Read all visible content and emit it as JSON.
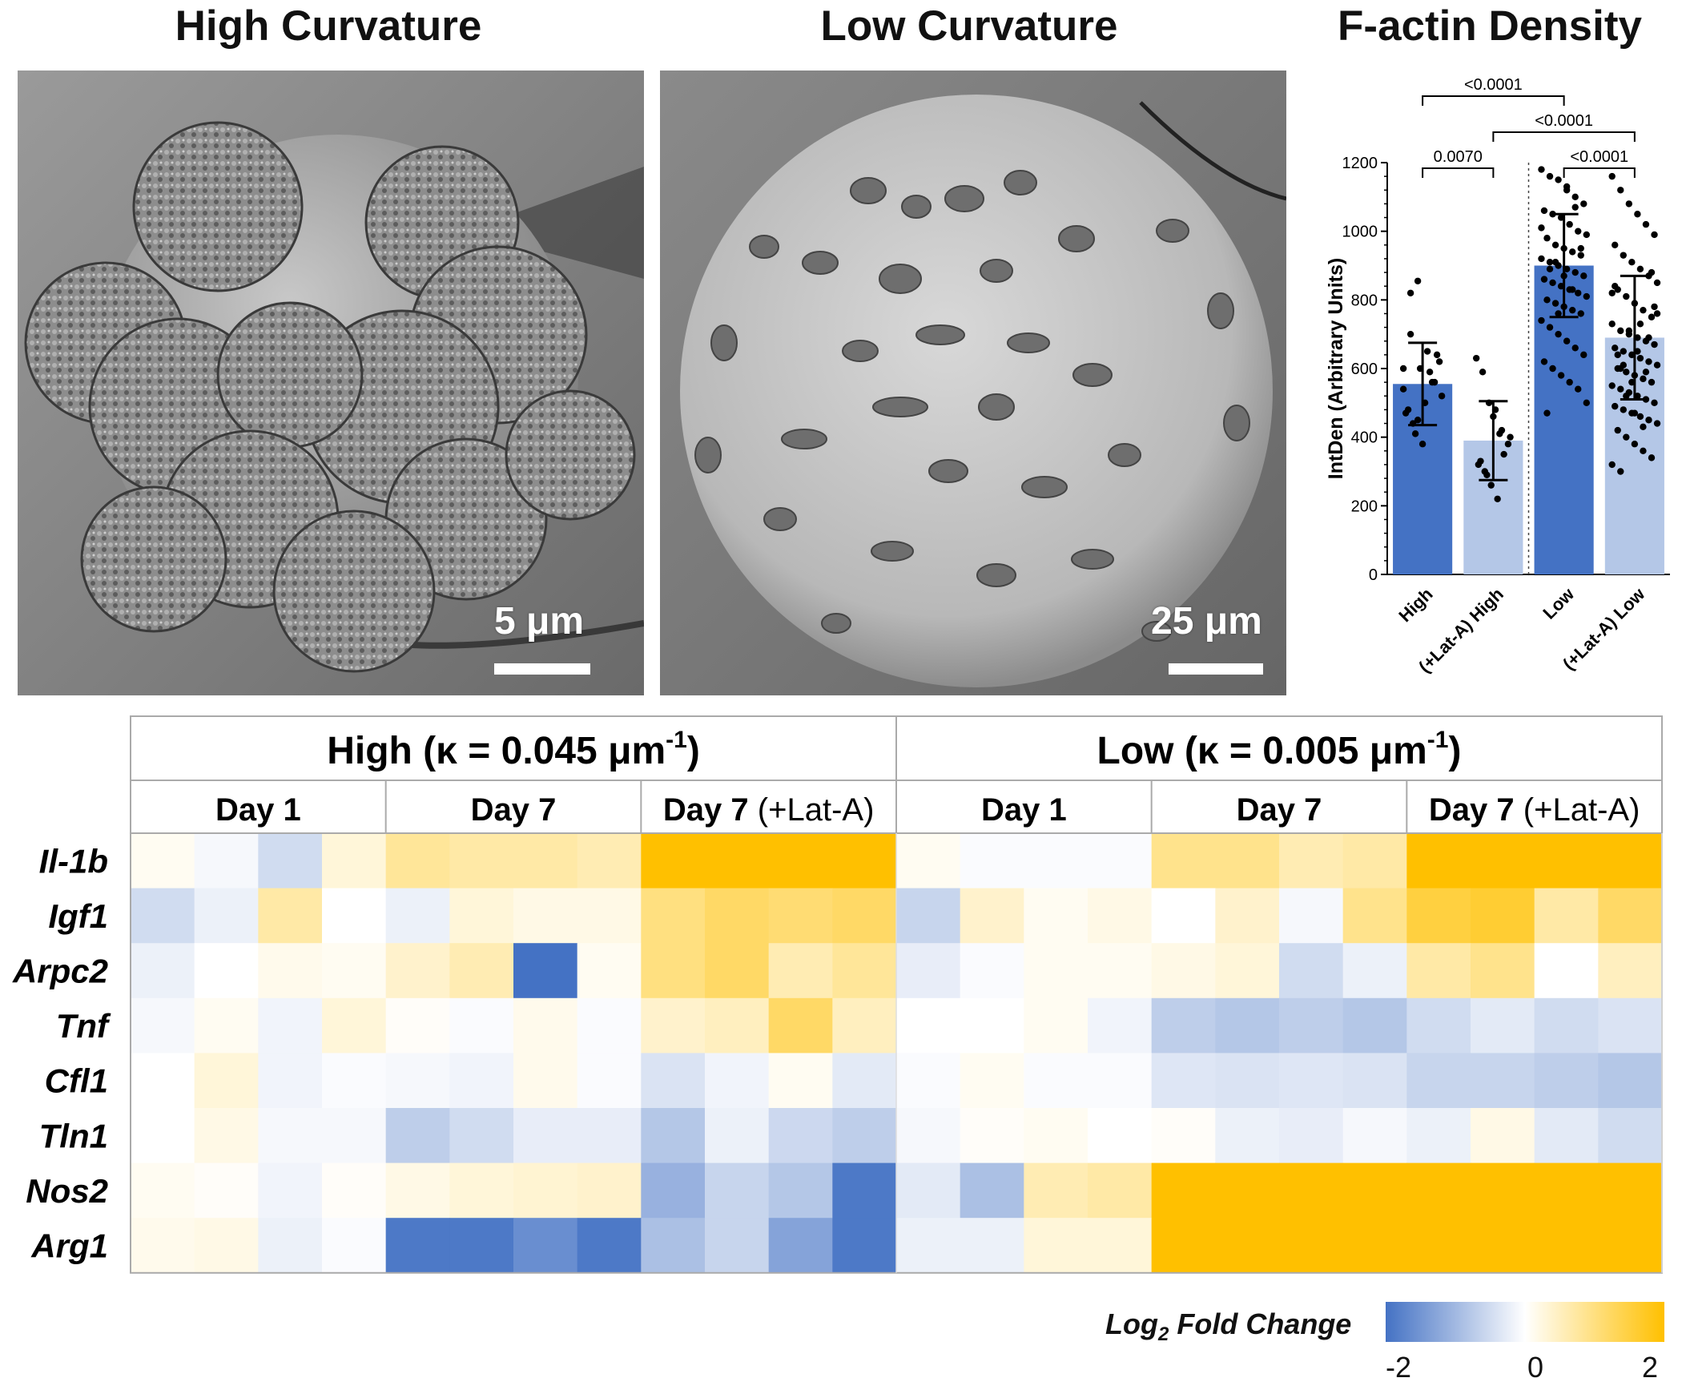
{
  "panels": {
    "high_title": "High Curvature",
    "low_title": "Low Curvature",
    "factin_title": "F-actin Density",
    "high_scale": "5 μm",
    "low_scale": "25 μm"
  },
  "chart_data": [
    {
      "type": "bar",
      "title": "F-actin Density",
      "xlabel": "",
      "ylabel": "IntDen (Arbitrary Units)",
      "ylim": [
        0,
        1200
      ],
      "yticks": [
        "0",
        "200",
        "400",
        "600",
        "800",
        "1000",
        "1200"
      ],
      "yticks_values": [
        0,
        200,
        400,
        600,
        800,
        1000,
        1200
      ],
      "categories": [
        "High",
        "(+Lat-A) High",
        "Low",
        "(+Lat-A) Low"
      ],
      "values": [
        555,
        390,
        900,
        690
      ],
      "sd": [
        120,
        115,
        150,
        180
      ],
      "bar_colors": [
        "#4472c4",
        "#b4c7e7",
        "#4472c4",
        "#b4c7e7"
      ],
      "significance": [
        {
          "label": "<0.0001",
          "from": "High",
          "to": "Low"
        },
        {
          "label": "<0.0001",
          "from": "(+Lat-A) High",
          "to": "(+Lat-A) Low"
        },
        {
          "label": "0.0070",
          "from": "High",
          "to": "(+Lat-A) High"
        },
        {
          "label": "<0.0001",
          "from": "Low",
          "to": "(+Lat-A) Low"
        }
      ],
      "points": [
        [
          600,
          820,
          855,
          500,
          560,
          620,
          470,
          440,
          600,
          650,
          560,
          520,
          480,
          410,
          380,
          590,
          640,
          540,
          700,
          450
        ],
        [
          630,
          590,
          500,
          480,
          420,
          380,
          320,
          300,
          260,
          220,
          350,
          400,
          330,
          290,
          460,
          410
        ],
        [
          1180,
          1160,
          1150,
          1120,
          1100,
          1080,
          1060,
          1050,
          1040,
          1020,
          1000,
          990,
          980,
          960,
          950,
          940,
          930,
          920,
          910,
          900,
          890,
          880,
          870,
          860,
          850,
          840,
          830,
          820,
          810,
          800,
          790,
          780,
          770,
          760,
          740,
          720,
          700,
          680,
          660,
          640,
          620,
          600,
          580,
          560,
          540,
          500,
          470,
          910,
          870,
          830,
          950,
          1010,
          890,
          760,
          1130,
          1070
        ],
        [
          1160,
          1120,
          1080,
          1050,
          1020,
          990,
          960,
          930,
          910,
          890,
          870,
          850,
          830,
          810,
          790,
          770,
          750,
          730,
          710,
          700,
          690,
          680,
          670,
          660,
          650,
          640,
          630,
          620,
          610,
          600,
          590,
          580,
          570,
          560,
          550,
          540,
          530,
          520,
          510,
          500,
          490,
          480,
          470,
          460,
          450,
          440,
          420,
          400,
          380,
          360,
          340,
          320,
          300,
          710,
          650,
          590,
          780,
          840,
          610,
          560,
          730,
          690,
          760,
          640,
          520,
          470,
          430,
          880,
          820,
          600
        ]
      ]
    },
    {
      "type": "heatmap",
      "title": "",
      "groups": [
        "High (κ = 0.045 μm",
        "Low (κ = 0.005 μm"
      ],
      "group_superscript": "-1",
      "group_close": ")",
      "conditions": [
        "Day 1",
        "Day 7",
        "Day 7",
        "Day 1",
        "Day 7",
        "Day 7"
      ],
      "condition_suffix": [
        "",
        "",
        " (+Lat-A)",
        "",
        "",
        " (+Lat-A)"
      ],
      "genes": [
        "Il-1b",
        "Igf1",
        "Arpc2",
        "Tnf",
        "Cfl1",
        "Tln1",
        "Nos2",
        "Arg1"
      ],
      "colorbar_label": "Log",
      "colorbar_sub": "2",
      "colorbar_rest": " Fold Change",
      "colorbar_ticks": [
        "-2",
        "0",
        "2"
      ],
      "range": [
        -2,
        2
      ],
      "colors": {
        "low": "#4472c4",
        "mid": "#ffffff",
        "high": "#ffc000"
      },
      "values": [
        [
          0.1,
          -0.1,
          -0.5,
          0.3,
          0.8,
          0.7,
          0.7,
          0.6,
          2.0,
          2.0,
          2.0,
          2.0,
          0.1,
          -0.05,
          -0.05,
          -0.05,
          0.9,
          0.9,
          0.6,
          0.7,
          2.0,
          2.0,
          2.0,
          2.0
        ],
        [
          -0.5,
          -0.2,
          0.7,
          0.0,
          -0.2,
          0.3,
          0.2,
          0.2,
          1.0,
          1.2,
          1.1,
          1.2,
          -0.6,
          0.4,
          0.1,
          0.2,
          0.0,
          0.4,
          -0.1,
          0.9,
          1.5,
          1.6,
          0.7,
          1.2
        ],
        [
          -0.2,
          0.0,
          0.15,
          0.1,
          0.4,
          0.6,
          -2.0,
          0.1,
          1.0,
          1.2,
          0.6,
          0.8,
          -0.25,
          -0.05,
          0.1,
          0.1,
          0.2,
          0.3,
          -0.5,
          -0.2,
          0.7,
          0.9,
          0.0,
          0.5
        ],
        [
          -0.1,
          0.1,
          -0.15,
          0.3,
          0.05,
          -0.05,
          0.15,
          -0.05,
          0.4,
          0.5,
          1.2,
          0.5,
          0.0,
          0.0,
          0.1,
          -0.15,
          -0.7,
          -0.8,
          -0.7,
          -0.8,
          -0.5,
          -0.3,
          -0.5,
          -0.4
        ],
        [
          0.0,
          0.3,
          -0.15,
          -0.05,
          -0.1,
          -0.15,
          0.15,
          -0.05,
          -0.4,
          -0.15,
          0.1,
          -0.3,
          -0.05,
          0.1,
          -0.05,
          -0.05,
          -0.35,
          -0.4,
          -0.35,
          -0.4,
          -0.6,
          -0.6,
          -0.7,
          -0.8
        ],
        [
          0.0,
          0.2,
          -0.1,
          -0.1,
          -0.7,
          -0.5,
          -0.25,
          -0.25,
          -0.8,
          -0.2,
          -0.55,
          -0.7,
          -0.1,
          0.05,
          0.1,
          0.0,
          0.05,
          -0.2,
          -0.25,
          -0.1,
          -0.2,
          0.2,
          -0.3,
          -0.5
        ],
        [
          0.1,
          0.05,
          -0.15,
          0.05,
          0.2,
          0.3,
          0.35,
          0.4,
          -1.1,
          -0.6,
          -0.8,
          -1.9,
          -0.3,
          -0.9,
          0.6,
          0.7,
          2.0,
          2.0,
          2.0,
          2.0,
          2.0,
          2.0,
          2.0,
          2.0
        ],
        [
          0.15,
          0.2,
          -0.2,
          -0.05,
          -1.9,
          -1.9,
          -1.6,
          -1.9,
          -0.9,
          -0.6,
          -1.3,
          -1.9,
          -0.2,
          -0.2,
          0.3,
          0.3,
          2.0,
          2.0,
          2.0,
          2.0,
          2.0,
          2.0,
          2.0,
          2.0
        ]
      ]
    }
  ]
}
